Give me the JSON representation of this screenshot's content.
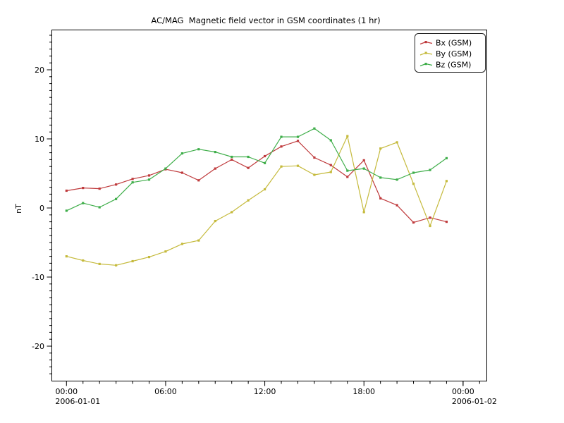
{
  "figure": {
    "background": "#ffffff"
  },
  "chart_data": {
    "type": "line",
    "title": "AC/MAG  Magnetic field vector in GSM coordinates (1 hr)",
    "xlabel": "",
    "ylabel": "nT",
    "ylim": [
      -25,
      25.8
    ],
    "yticks_major": [
      -20,
      -10,
      0,
      10,
      20
    ],
    "y_minor_step": 1,
    "x_minor_step_hours": 1,
    "x_major_ticks": [
      {
        "hour": 0,
        "label": "00:00",
        "sublabel": "2006-01-01"
      },
      {
        "hour": 6,
        "label": "06:00"
      },
      {
        "hour": 12,
        "label": "12:00"
      },
      {
        "hour": 18,
        "label": "18:00"
      },
      {
        "hour": 24,
        "label": "00:00",
        "sublabel": "2006-01-02"
      }
    ],
    "x_hours": [
      0,
      1,
      2,
      3,
      4,
      5,
      6,
      7,
      8,
      9,
      10,
      11,
      12,
      13,
      14,
      15,
      16,
      17,
      18,
      19,
      20,
      21,
      22,
      23
    ],
    "grid": false,
    "legend_position": "top-right",
    "series": [
      {
        "name": "Bx (GSM)",
        "color": "#bf3a3c",
        "values": [
          2.5,
          2.9,
          2.8,
          3.4,
          4.2,
          4.7,
          5.6,
          5.1,
          4.0,
          5.7,
          7.0,
          5.8,
          7.5,
          8.9,
          9.7,
          7.3,
          6.2,
          4.5,
          6.9,
          1.4,
          0.4,
          -2.1,
          -1.4,
          -2.0
        ]
      },
      {
        "name": "By (GSM)",
        "color": "#c5ba3c",
        "values": [
          -7.0,
          -7.6,
          -8.1,
          -8.3,
          -7.7,
          -7.1,
          -6.3,
          -5.2,
          -4.7,
          -1.9,
          -0.6,
          1.1,
          2.7,
          6.0,
          6.1,
          4.8,
          5.2,
          10.4,
          -0.6,
          8.6,
          9.5,
          3.5,
          -2.6,
          3.9
        ]
      },
      {
        "name": "Bz (GSM)",
        "color": "#3fae4a",
        "values": [
          -0.4,
          0.7,
          0.1,
          1.3,
          3.7,
          4.1,
          5.7,
          7.9,
          8.5,
          8.1,
          7.4,
          7.4,
          6.5,
          10.3,
          10.3,
          11.5,
          9.8,
          5.4,
          5.7,
          4.4,
          4.1,
          5.1,
          5.5,
          7.2
        ]
      }
    ]
  }
}
